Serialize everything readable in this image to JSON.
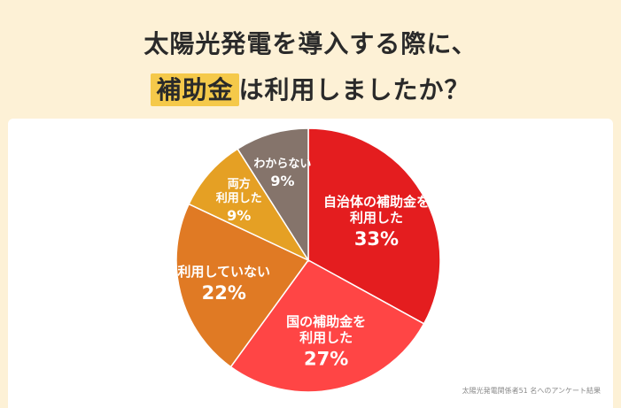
{
  "title": {
    "line1": "太陽光発電を導入する際に、",
    "highlight": "補助金",
    "line2_rest": "は利用しましたか？"
  },
  "chart_data": {
    "type": "pie",
    "title": "太陽光発電を導入する際に、補助金は利用しましたか？",
    "slices": [
      {
        "label": [
          "自治体の補助金を",
          "利用した"
        ],
        "value": 33,
        "color": "#e41d1f"
      },
      {
        "label": [
          "国の補助金を",
          "利用した"
        ],
        "value": 27,
        "color": "#ff4545"
      },
      {
        "label": [
          "利用していない"
        ],
        "value": 22,
        "color": "#e07a24"
      },
      {
        "label": [
          "両方",
          "利用した"
        ],
        "value": 9,
        "color": "#e5a024"
      },
      {
        "label": [
          "わからない"
        ],
        "value": 9,
        "color": "#85746b"
      }
    ],
    "unit": "%"
  },
  "source_note": "太陽光発電関係者51 名へのアンケート結果"
}
